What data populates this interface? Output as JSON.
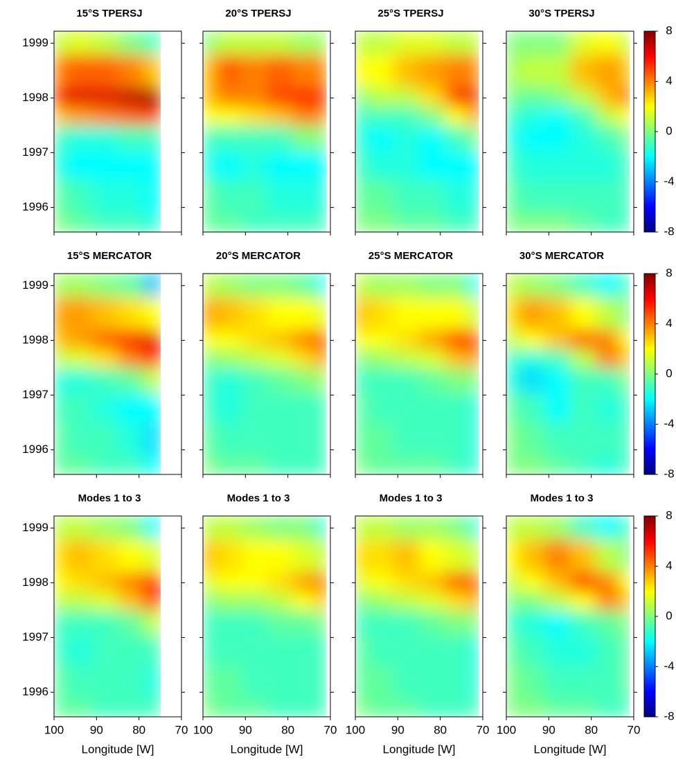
{
  "chart_data": [
    {
      "type": "heatmap",
      "title": "15°S TPERSJ",
      "colormap": "jet",
      "xlim": [
        100,
        70
      ],
      "ylim": [
        1995.55,
        1999.22
      ],
      "yticks": [
        1996,
        1997,
        1998,
        1999
      ],
      "x": [
        100,
        94,
        88,
        82,
        76,
        71
      ],
      "y": [
        1995.6,
        1996.2,
        1996.8,
        1997.3,
        1997.7,
        1998,
        1998.4,
        1999.2
      ],
      "values": [
        [
          0,
          -0.5,
          -1,
          -1,
          -1.5,
          null
        ],
        [
          -0.5,
          -1,
          -1.5,
          -1.5,
          -2,
          null
        ],
        [
          -1.5,
          -2,
          -2,
          -2,
          -2,
          null
        ],
        [
          -1,
          -1.5,
          -1.5,
          -1,
          -1,
          null
        ],
        [
          3,
          3.5,
          4,
          4.5,
          5,
          null
        ],
        [
          6,
          6.5,
          6.5,
          7,
          7.5,
          null
        ],
        [
          4,
          4.5,
          4.5,
          4,
          3,
          null
        ],
        [
          1,
          1.5,
          1,
          0,
          -1,
          null
        ]
      ]
    },
    {
      "type": "heatmap",
      "title": "20°S TPERSJ",
      "colormap": "jet",
      "xlim": [
        100,
        70
      ],
      "ylim": [
        1995.55,
        1999.22
      ],
      "x": [
        100,
        94,
        88,
        82,
        76,
        71
      ],
      "y": [
        1995.6,
        1996.2,
        1996.8,
        1997.3,
        1997.7,
        1998,
        1998.4,
        1999.2
      ],
      "values": [
        [
          -0.5,
          -0.5,
          -1,
          -1,
          -1,
          -1
        ],
        [
          -0.5,
          -1,
          -1,
          -1.5,
          -1.5,
          -1.5
        ],
        [
          -1.5,
          -2,
          -1.5,
          -2,
          -2,
          -2
        ],
        [
          -1,
          -1,
          -1,
          -1,
          0,
          0
        ],
        [
          2,
          2,
          2.5,
          3,
          4,
          4
        ],
        [
          3,
          4,
          4,
          5,
          5.5,
          5.5
        ],
        [
          3,
          4.5,
          4,
          4.5,
          4,
          4
        ],
        [
          0,
          1,
          1,
          1,
          0.5,
          0.5
        ]
      ]
    },
    {
      "type": "heatmap",
      "title": "25°S TPERSJ",
      "colormap": "jet",
      "xlim": [
        100,
        70
      ],
      "ylim": [
        1995.55,
        1999.22
      ],
      "x": [
        100,
        94,
        88,
        82,
        76,
        71
      ],
      "y": [
        1995.6,
        1996.2,
        1996.8,
        1997.3,
        1997.7,
        1998,
        1998.4,
        1999.2
      ],
      "values": [
        [
          0,
          0,
          -0.5,
          -0.5,
          -1,
          -1
        ],
        [
          -0.5,
          -0.5,
          -1,
          -1,
          -1.5,
          -1.5
        ],
        [
          -1,
          -1.5,
          -1.5,
          -2,
          -2,
          -2
        ],
        [
          -1.5,
          -2,
          -1.5,
          -2,
          -1,
          0
        ],
        [
          -1,
          -1,
          -1,
          0,
          2,
          4
        ],
        [
          0,
          1,
          1,
          2.5,
          5,
          6.5
        ],
        [
          2,
          2,
          3,
          3.5,
          4,
          4
        ],
        [
          1,
          1,
          1.5,
          1.5,
          1,
          1
        ]
      ]
    },
    {
      "type": "heatmap",
      "title": "30°S TPERSJ",
      "colormap": "jet",
      "xlim": [
        100,
        70
      ],
      "ylim": [
        1995.55,
        1999.22
      ],
      "x": [
        100,
        94,
        88,
        82,
        76,
        71
      ],
      "y": [
        1995.6,
        1996.2,
        1996.8,
        1997.3,
        1997.7,
        1998,
        1998.4,
        1999.2
      ],
      "values": [
        [
          0,
          0,
          0,
          -0.5,
          -1,
          -1
        ],
        [
          -0.5,
          -1,
          -1,
          -1,
          -1,
          -1
        ],
        [
          -1,
          -1.5,
          -1.5,
          -1.5,
          -1.5,
          -1
        ],
        [
          -1.5,
          -2,
          -2,
          -1.5,
          -1,
          0
        ],
        [
          -1,
          -1.5,
          -2,
          -1,
          1,
          2
        ],
        [
          0,
          -0.5,
          0,
          1,
          3,
          5
        ],
        [
          0.5,
          1,
          1,
          3,
          3.5,
          3
        ],
        [
          0,
          0,
          0,
          1.5,
          2,
          1
        ]
      ],
      "colorbar": {
        "clim": [
          -8,
          8
        ],
        "ticks": [
          -8,
          -4,
          0,
          4,
          8
        ]
      }
    },
    {
      "type": "heatmap",
      "title": "15°S MERCATOR",
      "colormap": "jet",
      "xlim": [
        100,
        70
      ],
      "ylim": [
        1995.55,
        1999.22
      ],
      "yticks": [
        1996,
        1997,
        1998,
        1999
      ],
      "x": [
        100,
        94,
        88,
        82,
        76,
        71
      ],
      "y": [
        1995.6,
        1996.2,
        1996.8,
        1997.3,
        1997.7,
        1998,
        1998.4,
        1999.2
      ],
      "values": [
        [
          -0.5,
          -0.5,
          -1,
          -1,
          -2,
          null
        ],
        [
          -0.5,
          -1,
          -1,
          -1.5,
          -2.5,
          null
        ],
        [
          -1,
          -1,
          -1.5,
          -2,
          -2,
          null
        ],
        [
          -1.5,
          -1.5,
          -1,
          -0.5,
          1,
          null
        ],
        [
          1,
          1.5,
          2.5,
          4,
          6,
          null
        ],
        [
          3,
          3.5,
          4.5,
          5.5,
          6.5,
          null
        ],
        [
          3.5,
          3.5,
          3,
          2.5,
          2,
          null
        ],
        [
          0.5,
          0.5,
          0,
          -0.5,
          -3,
          null
        ]
      ]
    },
    {
      "type": "heatmap",
      "title": "20°S MERCATOR",
      "colormap": "jet",
      "xlim": [
        100,
        70
      ],
      "ylim": [
        1995.55,
        1999.22
      ],
      "x": [
        100,
        94,
        88,
        82,
        76,
        71
      ],
      "y": [
        1995.6,
        1996.2,
        1996.8,
        1997.3,
        1997.7,
        1998,
        1998.4,
        1999.2
      ],
      "values": [
        [
          0,
          -0.5,
          -0.5,
          -1,
          -1,
          -1
        ],
        [
          -0.5,
          -1,
          -1,
          -1,
          -1,
          -1
        ],
        [
          -1,
          -1.5,
          -1,
          -1,
          -1,
          -1
        ],
        [
          -1,
          -1.5,
          -1,
          -0.5,
          0,
          0.5
        ],
        [
          0,
          0.5,
          1,
          1.5,
          2.5,
          4
        ],
        [
          2,
          2,
          2.5,
          3,
          4,
          5
        ],
        [
          3.5,
          3,
          2.5,
          2,
          2,
          1.5
        ],
        [
          1,
          0.5,
          0,
          0,
          -0.5,
          -2
        ]
      ]
    },
    {
      "type": "heatmap",
      "title": "25°S MERCATOR",
      "colormap": "jet",
      "xlim": [
        100,
        70
      ],
      "ylim": [
        1995.55,
        1999.22
      ],
      "x": [
        100,
        94,
        88,
        82,
        76,
        71
      ],
      "y": [
        1995.6,
        1996.2,
        1996.8,
        1997.3,
        1997.7,
        1998,
        1998.4,
        1999.2
      ],
      "values": [
        [
          0,
          -0.5,
          -0.5,
          -0.5,
          -1,
          -1.5
        ],
        [
          -0.5,
          -0.5,
          -1,
          -1,
          -1,
          -1.5
        ],
        [
          -0.5,
          -1,
          -1,
          -1,
          -1,
          -1.5
        ],
        [
          -1,
          -1,
          -1,
          -0.5,
          0,
          0
        ],
        [
          0,
          0.5,
          1,
          1.5,
          3,
          4
        ],
        [
          2,
          2,
          2.5,
          3.5,
          5,
          5.5
        ],
        [
          3,
          2.5,
          2,
          2,
          2,
          1
        ],
        [
          1,
          0.5,
          0.5,
          0,
          0,
          -2
        ]
      ]
    },
    {
      "type": "heatmap",
      "title": "30°S MERCATOR",
      "colormap": "jet",
      "xlim": [
        100,
        70
      ],
      "ylim": [
        1995.55,
        1999.22
      ],
      "x": [
        100,
        94,
        88,
        82,
        76,
        71
      ],
      "y": [
        1995.6,
        1996.2,
        1996.8,
        1997.3,
        1997.7,
        1998,
        1998.4,
        1999.2
      ],
      "values": [
        [
          0,
          0,
          -0.5,
          -1,
          -1.5,
          -1
        ],
        [
          0,
          -0.5,
          -1,
          -1,
          -1,
          -1
        ],
        [
          -0.5,
          -1,
          -2,
          -1,
          -1.5,
          -1
        ],
        [
          -1.5,
          -2.5,
          -2,
          -1,
          -1,
          0
        ],
        [
          -1,
          -1.5,
          -1,
          1,
          4,
          3
        ],
        [
          1,
          2,
          3,
          4.5,
          4,
          2
        ],
        [
          2.5,
          3.5,
          3,
          2,
          1,
          0
        ],
        [
          1,
          0.5,
          0,
          -1,
          -2,
          -1
        ]
      ],
      "colorbar": {
        "clim": [
          -8,
          8
        ],
        "ticks": [
          -8,
          -4,
          0,
          4,
          8
        ]
      }
    },
    {
      "type": "heatmap",
      "title": "Modes 1 to 3",
      "colormap": "jet",
      "xlim": [
        100,
        70
      ],
      "ylim": [
        1995.55,
        1999.22
      ],
      "yticks": [
        1996,
        1997,
        1998,
        1999
      ],
      "xticks": [
        100,
        90,
        80,
        70
      ],
      "xlabel": "Longitude [W]",
      "x": [
        100,
        94,
        88,
        82,
        76,
        71
      ],
      "y": [
        1995.6,
        1996.2,
        1996.8,
        1997.3,
        1997.7,
        1998,
        1998.4,
        1999.2
      ],
      "values": [
        [
          -0.5,
          -0.5,
          -1,
          -1,
          -1,
          null
        ],
        [
          -0.5,
          -1,
          -1,
          -1,
          -1.5,
          null
        ],
        [
          -1,
          -1.5,
          -1,
          -1,
          -1,
          null
        ],
        [
          -1,
          -1,
          -1,
          -0.5,
          1,
          null
        ],
        [
          1,
          1,
          1.5,
          3,
          5.5,
          null
        ],
        [
          2,
          2.5,
          3,
          4,
          6,
          null
        ],
        [
          2.5,
          3,
          2.5,
          2,
          1.5,
          null
        ],
        [
          1,
          1,
          0.5,
          0,
          -2,
          null
        ]
      ]
    },
    {
      "type": "heatmap",
      "title": "Modes 1 to 3",
      "colormap": "jet",
      "xlim": [
        100,
        70
      ],
      "ylim": [
        1995.55,
        1999.22
      ],
      "xticks": [
        100,
        90,
        80,
        70
      ],
      "xlabel": "Longitude [W]",
      "x": [
        100,
        94,
        88,
        82,
        76,
        71
      ],
      "y": [
        1995.6,
        1996.2,
        1996.8,
        1997.3,
        1997.7,
        1998,
        1998.4,
        1999.2
      ],
      "values": [
        [
          0,
          -0.5,
          -0.5,
          -1,
          -1,
          -1
        ],
        [
          -0.5,
          -0.5,
          -1,
          -1,
          -1,
          -1
        ],
        [
          -1,
          -1,
          -1,
          -1,
          -1,
          -1
        ],
        [
          -1,
          -1,
          -1,
          -0.5,
          -0.5,
          0
        ],
        [
          0,
          0.5,
          0.5,
          1,
          2,
          3
        ],
        [
          1.5,
          2,
          2,
          2.5,
          3.5,
          4.5
        ],
        [
          3,
          2.5,
          2,
          2,
          1.5,
          1
        ],
        [
          1,
          1,
          0.5,
          0,
          0,
          -1.5
        ]
      ]
    },
    {
      "type": "heatmap",
      "title": "Modes 1 to 3",
      "colormap": "jet",
      "xlim": [
        100,
        70
      ],
      "ylim": [
        1995.55,
        1999.22
      ],
      "xticks": [
        100,
        90,
        80,
        70
      ],
      "xlabel": "Longitude [W]",
      "x": [
        100,
        94,
        88,
        82,
        76,
        71
      ],
      "y": [
        1995.6,
        1996.2,
        1996.8,
        1997.3,
        1997.7,
        1998,
        1998.4,
        1999.2
      ],
      "values": [
        [
          0,
          -0.5,
          -0.5,
          -1,
          -1,
          -1
        ],
        [
          -0.5,
          -0.5,
          -1,
          -1,
          -1,
          -1.5
        ],
        [
          -0.5,
          -1,
          -1,
          -1,
          -1,
          -1.5
        ],
        [
          -1,
          -1,
          -1,
          -0.5,
          0,
          0
        ],
        [
          0,
          0.5,
          1,
          1.5,
          2.5,
          3.5
        ],
        [
          1.5,
          2,
          2.5,
          3,
          4.5,
          5
        ],
        [
          2.5,
          2.5,
          3,
          2,
          1.5,
          1
        ],
        [
          1,
          1,
          0.5,
          0.5,
          0,
          -1.5
        ]
      ]
    },
    {
      "type": "heatmap",
      "title": "Modes 1 to 3",
      "colormap": "jet",
      "xlim": [
        100,
        70
      ],
      "ylim": [
        1995.55,
        1999.22
      ],
      "xticks": [
        100,
        90,
        80,
        70
      ],
      "xlabel": "Longitude [W]",
      "x": [
        100,
        94,
        88,
        82,
        76,
        71
      ],
      "y": [
        1995.6,
        1996.2,
        1996.8,
        1997.3,
        1997.7,
        1998,
        1998.4,
        1999.2
      ],
      "values": [
        [
          0,
          0,
          -0.5,
          -0.5,
          -1,
          -1
        ],
        [
          0,
          -0.5,
          -1,
          -1,
          -1,
          -0.5
        ],
        [
          -0.5,
          -1,
          -1.5,
          -1.5,
          -1,
          -0.5
        ],
        [
          -1,
          -1.5,
          -2,
          -1,
          -0.5,
          0
        ],
        [
          0,
          0,
          1,
          2,
          4,
          3
        ],
        [
          1,
          2,
          3,
          5,
          4,
          2
        ],
        [
          2,
          3,
          4,
          3,
          1,
          0
        ],
        [
          1,
          1,
          0.5,
          -1,
          -2,
          -1
        ]
      ],
      "colorbar": {
        "clim": [
          -8,
          8
        ],
        "ticks": [
          -8,
          -4,
          0,
          4,
          8
        ]
      }
    }
  ]
}
